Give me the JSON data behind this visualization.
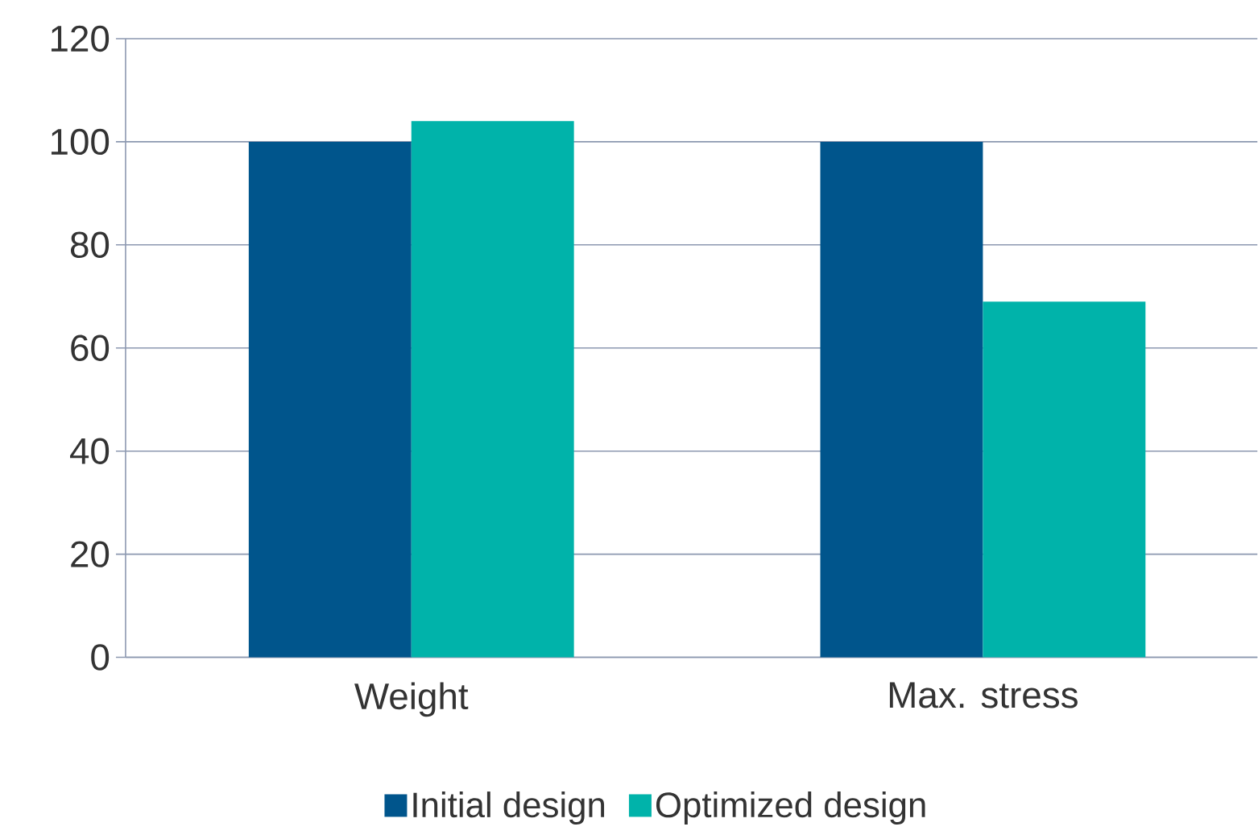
{
  "chart_data": {
    "type": "bar",
    "categories": [
      "Weight",
      "Max. stress"
    ],
    "series": [
      {
        "name": "Initial design",
        "color": "#00558c",
        "values": [
          100,
          100
        ]
      },
      {
        "name": "Optimized design",
        "color": "#00b3aa",
        "values": [
          104,
          69
        ]
      }
    ],
    "ylim": [
      0,
      120
    ],
    "yticks": [
      0,
      20,
      40,
      60,
      80,
      100,
      120
    ],
    "grid": "y",
    "legend": "bottom"
  }
}
